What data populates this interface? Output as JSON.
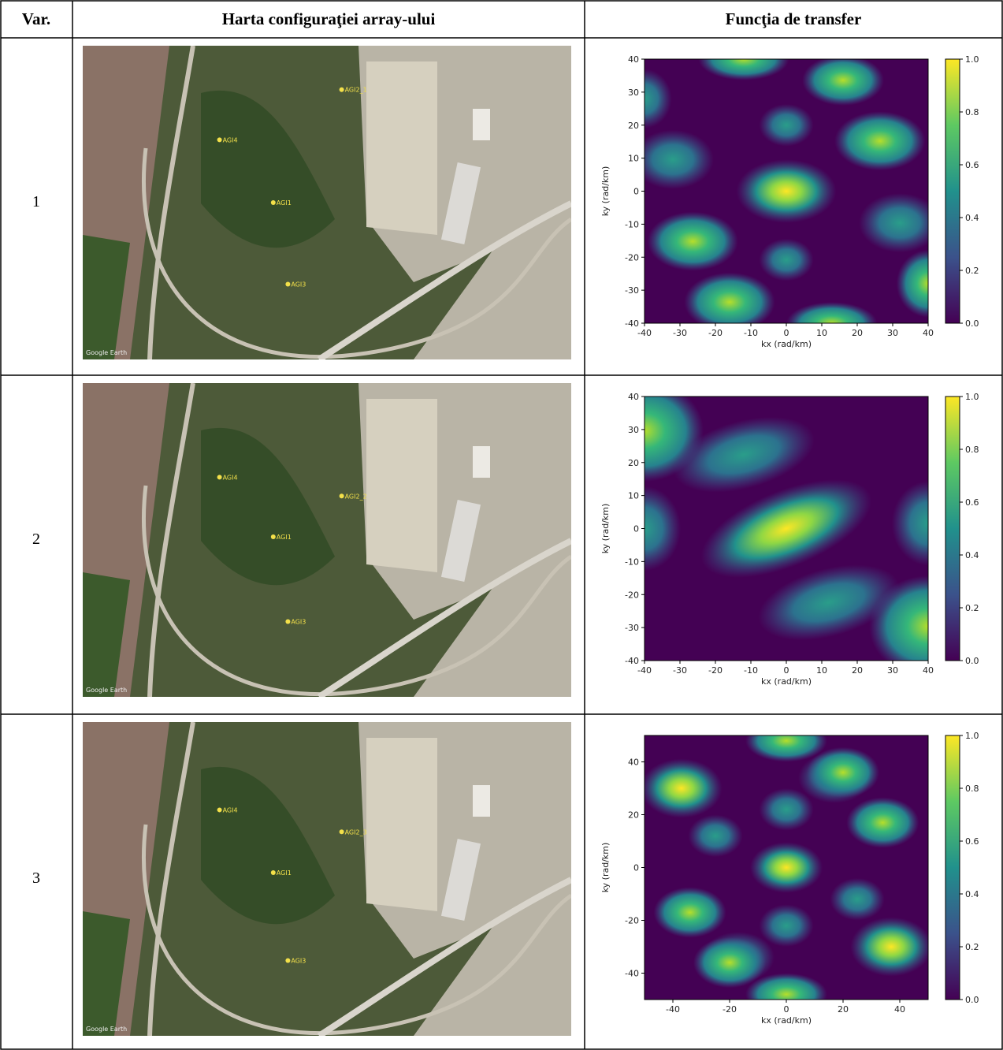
{
  "header": {
    "columns": [
      "Var.",
      "Harta configuraţiei array-ului",
      "Funcţia de transfer"
    ]
  },
  "rows": [
    {
      "var": "1",
      "map": {
        "markers": [
          "AGI2_1",
          "AGI4",
          "AGI1",
          "AGI3"
        ],
        "credit": "Google Earth"
      },
      "transfer": {
        "type": "heatmap",
        "xlabel": "kx (rad/km)",
        "ylabel": "ky (rad/km)",
        "xlim": [
          -40,
          40
        ],
        "xticks": [
          -40,
          -30,
          -20,
          -10,
          0,
          10,
          20,
          30,
          40
        ],
        "ylim": [
          -40,
          40
        ],
        "yticks": [
          -40,
          -30,
          -20,
          -10,
          0,
          10,
          20,
          30,
          40
        ],
        "colorbar": {
          "lim": [
            0,
            1
          ],
          "ticks": [
            {
              "value": 0,
              "label": "0.0"
            },
            0.2,
            0.4,
            0.6,
            0.8,
            {
              "value": 1,
              "label": "1.0"
            }
          ]
        }
      }
    },
    {
      "var": "2",
      "map": {
        "markers": [
          "AGI4",
          "AGI2_2",
          "AGI1",
          "AGI3"
        ],
        "credit": "Google Earth"
      },
      "transfer": {
        "type": "heatmap",
        "xlabel": "kx (rad/km)",
        "ylabel": "ky (rad/km)",
        "xlim": [
          -40,
          40
        ],
        "xticks": [
          -40,
          -30,
          -20,
          -10,
          0,
          10,
          20,
          30,
          40
        ],
        "ylim": [
          -40,
          40
        ],
        "yticks": [
          -40,
          -30,
          -20,
          -10,
          0,
          10,
          20,
          30,
          40
        ],
        "colorbar": {
          "lim": [
            0,
            1
          ],
          "ticks": [
            {
              "value": 0,
              "label": "0.0"
            },
            0.2,
            0.4,
            0.6,
            0.8,
            {
              "value": 1,
              "label": "1.0"
            }
          ]
        }
      }
    },
    {
      "var": "3",
      "map": {
        "markers": [
          "AGI4",
          "AGI2_3",
          "AGI1",
          "AGI3"
        ],
        "credit": "Google Earth"
      },
      "transfer": {
        "type": "heatmap",
        "xlabel": "kx (rad/km)",
        "ylabel": "ky (rad/km)",
        "xlim": [
          -50,
          50
        ],
        "xticks": [
          -40,
          -20,
          0,
          20,
          40
        ],
        "ylim": [
          -50,
          50
        ],
        "yticks": [
          -40,
          -20,
          0,
          20,
          40
        ],
        "colorbar": {
          "lim": [
            0,
            1
          ],
          "ticks": [
            {
              "value": 0,
              "label": "0.0"
            },
            0.2,
            0.4,
            0.6,
            0.8,
            {
              "value": 1,
              "label": "1.0"
            }
          ]
        }
      }
    }
  ]
}
